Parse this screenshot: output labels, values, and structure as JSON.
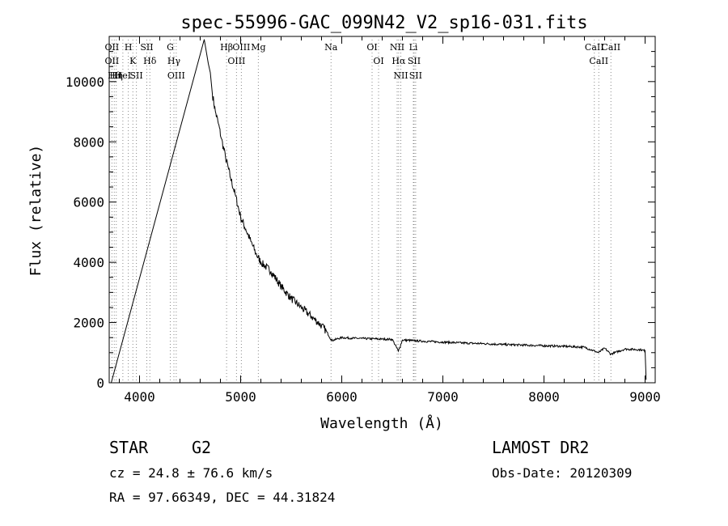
{
  "chart_data": {
    "type": "line",
    "title": "spec-55996-GAC_099N42_V2_sp16-031.fits",
    "xlabel": "Wavelength (Å)",
    "ylabel": "Flux (relative)",
    "xlim": [
      3700,
      9100
    ],
    "ylim": [
      0,
      11500
    ],
    "xticks": [
      4000,
      5000,
      6000,
      7000,
      8000,
      9000
    ],
    "yticks": [
      0,
      2000,
      4000,
      6000,
      8000,
      10000
    ],
    "grid": false,
    "series": [
      {
        "x": [
          3700,
          3720,
          4640,
          4660,
          4680,
          4700,
          4720,
          4750,
          4780,
          4810,
          4850,
          4900,
          4950,
          5000,
          5050,
          5100,
          5150,
          5200,
          5300,
          5400,
          5500,
          5600,
          5700,
          5800,
          5850,
          5900,
          5950,
          6000,
          6100,
          6200,
          6300,
          6400,
          6500,
          6560,
          6600,
          6700,
          6800,
          7000,
          7200,
          7400,
          7600,
          7800,
          8000,
          8200,
          8400,
          8540,
          8600,
          8660,
          8800,
          8950,
          9000,
          9010
        ],
        "y": [
          0,
          0,
          11400,
          11000,
          10600,
          10300,
          9600,
          9000,
          8600,
          8100,
          7500,
          6800,
          6200,
          5500,
          5100,
          4700,
          4300,
          4000,
          3700,
          3200,
          2800,
          2500,
          2200,
          1900,
          1700,
          1400,
          1450,
          1500,
          1480,
          1470,
          1460,
          1450,
          1440,
          1050,
          1420,
          1400,
          1380,
          1350,
          1320,
          1300,
          1270,
          1250,
          1230,
          1210,
          1180,
          1000,
          1150,
          950,
          1120,
          1100,
          1060,
          100
        ]
      }
    ],
    "lines": [
      {
        "x": 3727,
        "labels": [
          "OII",
          "OII"
        ]
      },
      {
        "x": 3750,
        "labels": [
          "Hθ"
        ]
      },
      {
        "x": 3770,
        "labels": [
          "Hη"
        ]
      },
      {
        "x": 3835,
        "labels": [
          "HeI"
        ]
      },
      {
        "x": 3889,
        "labels": [
          "H"
        ]
      },
      {
        "x": 3934,
        "labels": [
          "K"
        ]
      },
      {
        "x": 3969,
        "labels": [
          "SII"
        ]
      },
      {
        "x": 4072,
        "labels": [
          "SII"
        ]
      },
      {
        "x": 4102,
        "labels": [
          "Hδ"
        ]
      },
      {
        "x": 4304,
        "labels": [
          "G"
        ]
      },
      {
        "x": 4340,
        "labels": [
          "Hγ"
        ]
      },
      {
        "x": 4363,
        "labels": [
          "OIII"
        ]
      },
      {
        "x": 4861,
        "labels": [
          "Hβ"
        ]
      },
      {
        "x": 4959,
        "labels": [
          "OIII"
        ]
      },
      {
        "x": 5007,
        "labels": [
          "OIII"
        ]
      },
      {
        "x": 5175,
        "labels": [
          "Mg"
        ]
      },
      {
        "x": 5894,
        "labels": [
          "Na"
        ]
      },
      {
        "x": 6300,
        "labels": [
          "OI"
        ]
      },
      {
        "x": 6364,
        "labels": [
          "OI"
        ]
      },
      {
        "x": 6548,
        "labels": [
          "NII"
        ]
      },
      {
        "x": 6563,
        "labels": [
          "Hα"
        ]
      },
      {
        "x": 6584,
        "labels": [
          "NII"
        ]
      },
      {
        "x": 6708,
        "labels": [
          "Li"
        ]
      },
      {
        "x": 6716,
        "labels": [
          "SII"
        ]
      },
      {
        "x": 6731,
        "labels": [
          "SII"
        ]
      },
      {
        "x": 8498,
        "labels": [
          "CaII"
        ]
      },
      {
        "x": 8542,
        "labels": [
          "CaII"
        ]
      },
      {
        "x": 8662,
        "labels": [
          "CaII"
        ]
      }
    ]
  },
  "info": {
    "class": "STAR",
    "subclass": "G2",
    "survey": "LAMOST DR2",
    "cz": "cz = 24.8 ± 76.6 km/s",
    "obs_date": "Obs-Date: 20120309",
    "radec": "RA =  97.66349, DEC =  44.31824"
  }
}
